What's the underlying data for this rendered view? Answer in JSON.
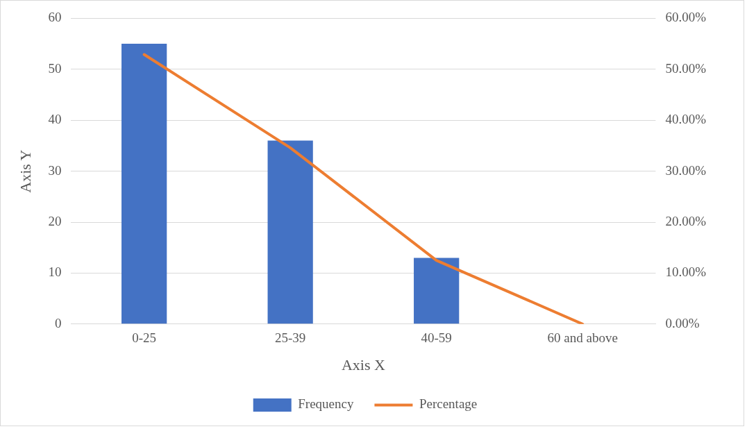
{
  "chart_data": {
    "type": "bar",
    "xlabel": "Axis X",
    "ylabel": "Axis Y",
    "categories": [
      "0-25",
      "25-39",
      "40-59",
      "60 and above"
    ],
    "series": [
      {
        "name": "Frequency",
        "type": "bar",
        "color": "#4472c4",
        "values": [
          55,
          36,
          13,
          0
        ]
      },
      {
        "name": "Percentage",
        "type": "line",
        "axis": "y2",
        "color": "#ed7d31",
        "values": [
          52.9,
          34.6,
          12.5,
          0
        ]
      }
    ],
    "ylim": [
      0,
      60
    ],
    "yticks": [
      0,
      10,
      20,
      30,
      40,
      50,
      60
    ],
    "y2lim": [
      0,
      60
    ],
    "y2ticks": [
      {
        "value": 0,
        "label": "0.00%"
      },
      {
        "value": 10,
        "label": "10.00%"
      },
      {
        "value": 20,
        "label": "20.00%"
      },
      {
        "value": 30,
        "label": "30.00%"
      },
      {
        "value": 40,
        "label": "40.00%"
      },
      {
        "value": 50,
        "label": "50.00%"
      },
      {
        "value": 60,
        "label": "60.00%"
      }
    ],
    "grid": "y",
    "legend": "bottom",
    "marker": "none",
    "line_style": "solid"
  }
}
